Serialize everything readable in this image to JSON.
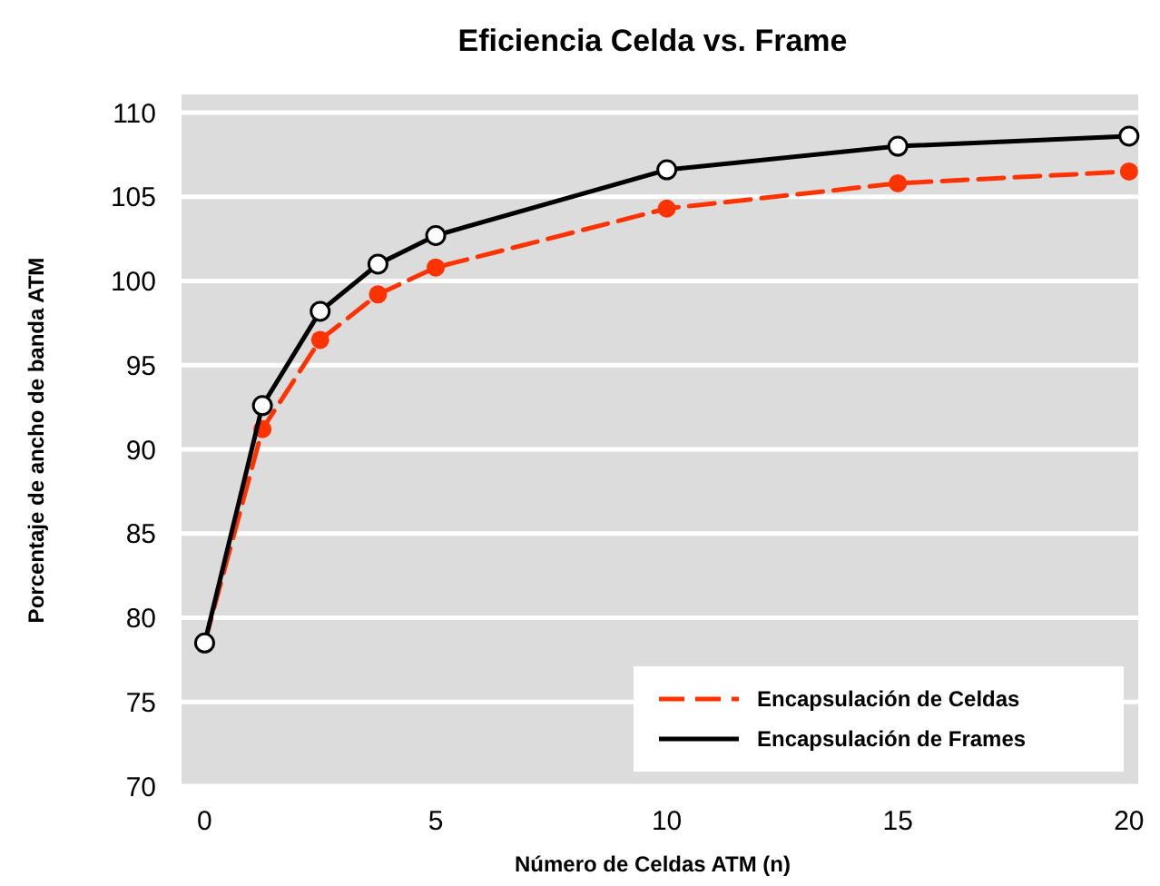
{
  "chart_data": {
    "type": "line",
    "title": "Eficiencia Celda vs. Frame",
    "xlabel": "Número de Celdas ATM (n)",
    "ylabel": "Porcentaje de ancho de banda ATM",
    "x": [
      0,
      1.25,
      2.5,
      3.75,
      5,
      10,
      15,
      20
    ],
    "xlim": [
      -0.5,
      20.2
    ],
    "xticks": [
      0,
      5,
      10,
      15,
      20
    ],
    "ylim": [
      70,
      110
    ],
    "yticks": [
      70,
      75,
      80,
      85,
      90,
      95,
      100,
      105,
      110
    ],
    "grid": "y",
    "legend": "bottom right",
    "series": [
      {
        "name": "Encapsulación de Celdas",
        "color": "#ff3300",
        "line_style": "dashed",
        "marker": "circle",
        "values": [
          78.5,
          91.2,
          96.5,
          99.2,
          100.8,
          104.3,
          105.8,
          106.5
        ]
      },
      {
        "name": "Encapsulación de Frames",
        "color": "#000000",
        "line_style": "solid",
        "marker": "circle",
        "values": [
          78.5,
          92.6,
          98.2,
          101,
          102.7,
          106.6,
          108,
          108.6
        ]
      }
    ]
  }
}
